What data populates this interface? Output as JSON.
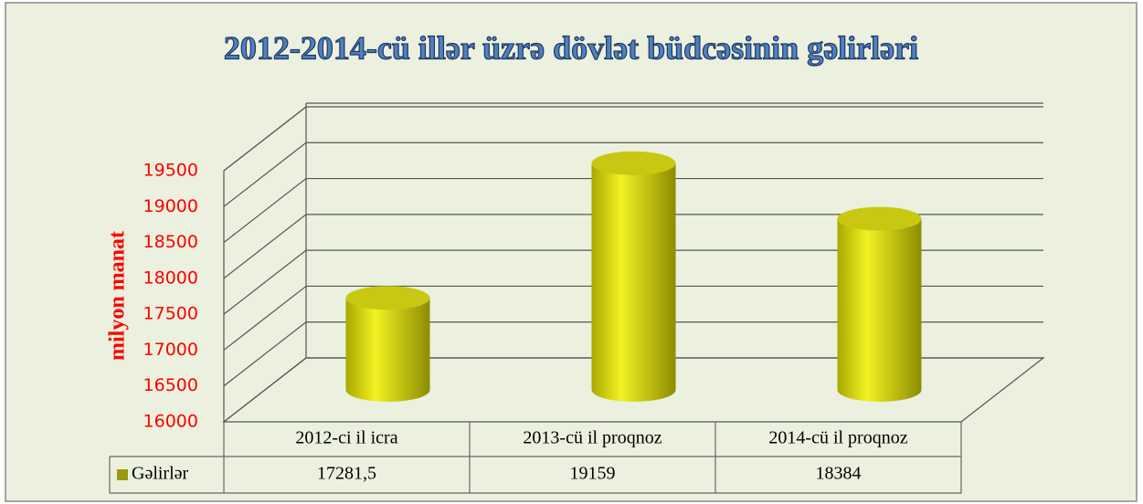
{
  "chart_data": {
    "type": "bar3d",
    "title": "2012-2014-cü illər üzrə dövlət büdcəsinin gəlirləri",
    "y_label": "milyon manat",
    "categories": [
      "2012-ci il icra",
      "2013-cü il proqnoz",
      "2014-cü il proqnoz"
    ],
    "series": [
      {
        "name": "Gəlirlər",
        "color": "#f2f224",
        "values": [
          17281.5,
          19159,
          18384
        ],
        "value_labels": [
          "17281,5",
          "19159",
          "18384"
        ]
      }
    ],
    "ylim": [
      16000,
      19500
    ],
    "yticks": [
      16000,
      16500,
      17000,
      17500,
      18000,
      18500,
      19000,
      19500
    ],
    "grid": true
  }
}
